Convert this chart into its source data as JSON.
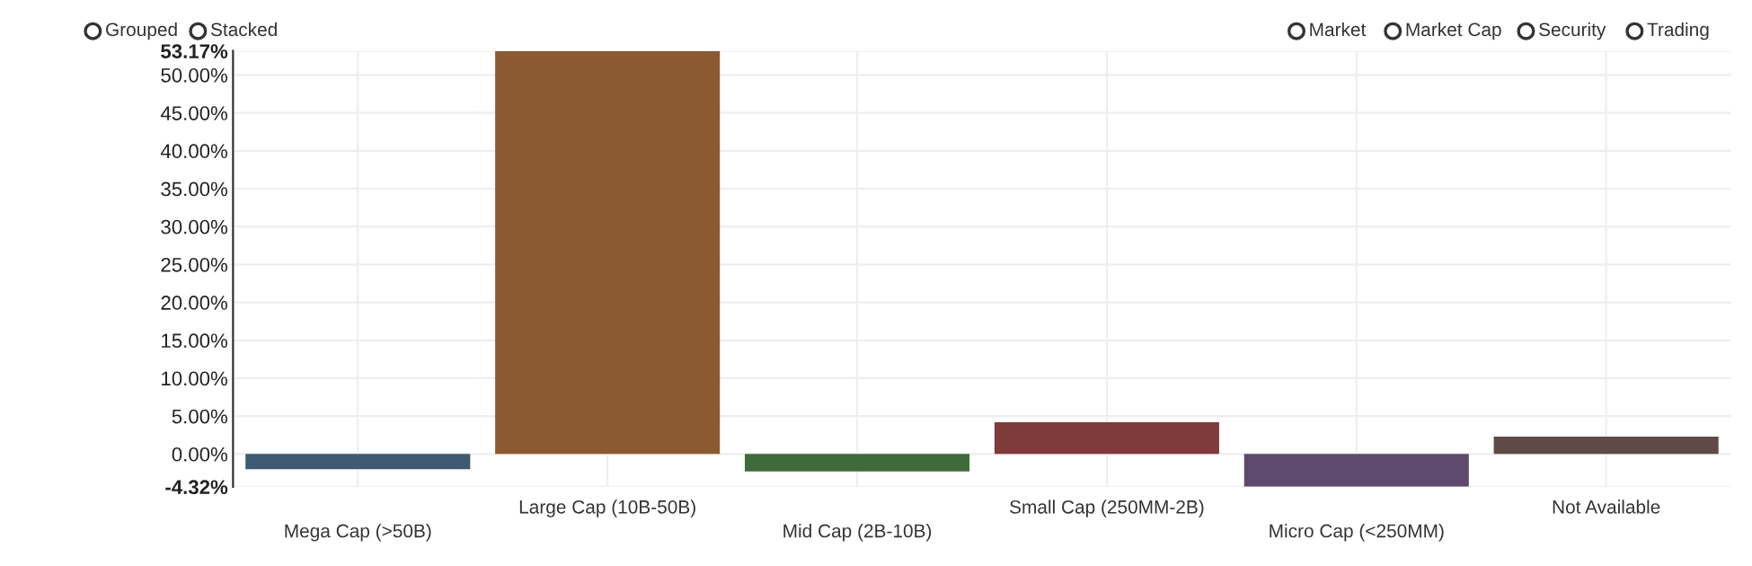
{
  "chart_data": {
    "type": "bar",
    "categories": [
      "Mega Cap (>50B)",
      "Large Cap (10B-50B)",
      "Mid Cap (2B-10B)",
      "Small Cap (250MM-2B)",
      "Micro Cap (<250MM)",
      "Not Available"
    ],
    "values": [
      -2.0,
      53.17,
      -2.3,
      4.2,
      -4.32,
      2.3
    ],
    "colors": [
      "#3e5a73",
      "#8b5a33",
      "#3f6b3a",
      "#7f3a3a",
      "#5e4a6e",
      "#5e4a46"
    ],
    "ylim": [
      -4.32,
      53.17
    ],
    "yticks": [
      {
        "value": -4.32,
        "label": "-4.32%"
      },
      {
        "value": 0,
        "label": "0.00%"
      },
      {
        "value": 5,
        "label": "5.00%"
      },
      {
        "value": 10,
        "label": "10.00%"
      },
      {
        "value": 15,
        "label": "15.00%"
      },
      {
        "value": 20,
        "label": "20.00%"
      },
      {
        "value": 25,
        "label": "25.00%"
      },
      {
        "value": 30,
        "label": "30.00%"
      },
      {
        "value": 35,
        "label": "35.00%"
      },
      {
        "value": 40,
        "label": "40.00%"
      },
      {
        "value": 45,
        "label": "45.00%"
      },
      {
        "value": 50,
        "label": "50.00%"
      },
      {
        "value": 53.17,
        "label": "53.17%"
      }
    ],
    "grid": true,
    "annotations": [
      "Grouped",
      "Stacked",
      "Market",
      "Market Cap",
      "Security",
      "Trading"
    ]
  }
}
